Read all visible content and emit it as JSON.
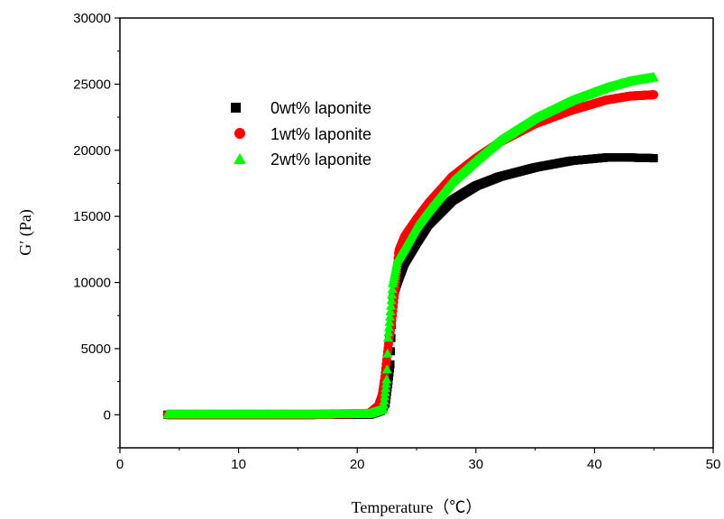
{
  "chart_data": {
    "type": "scatter",
    "title": "",
    "xlabel": "Temperature（℃）",
    "ylabel": "G′ (Pa)",
    "xlim": [
      0,
      50
    ],
    "ylim": [
      -2500,
      30000
    ],
    "x_ticks": [
      0,
      10,
      20,
      30,
      40,
      50
    ],
    "y_ticks": [
      0,
      5000,
      10000,
      15000,
      20000,
      25000,
      30000
    ],
    "x_tick_labels": [
      "0",
      "10",
      "20",
      "30",
      "40",
      "50"
    ],
    "y_tick_labels": [
      "0",
      "5000",
      "10000",
      "15000",
      "20000",
      "25000",
      "30000"
    ],
    "grid": false,
    "legend_position": "upper-left inside",
    "series": [
      {
        "name": "0wt% laponite",
        "marker": "square",
        "color": "#000000",
        "points": [
          [
            4,
            0
          ],
          [
            10,
            0
          ],
          [
            16,
            0
          ],
          [
            21,
            0
          ],
          [
            22.0,
            300
          ],
          [
            22.4,
            900
          ],
          [
            22.6,
            2300
          ],
          [
            22.8,
            3800
          ],
          [
            23.0,
            8800
          ],
          [
            23.3,
            9800
          ],
          [
            24,
            11500
          ],
          [
            25,
            13000
          ],
          [
            26,
            14400
          ],
          [
            28,
            16200
          ],
          [
            30,
            17300
          ],
          [
            32,
            18000
          ],
          [
            35,
            18700
          ],
          [
            38,
            19200
          ],
          [
            41,
            19450
          ],
          [
            43,
            19450
          ],
          [
            45,
            19400
          ]
        ]
      },
      {
        "name": "1wt% laponite",
        "marker": "circle",
        "color": "#ff0000",
        "points": [
          [
            4,
            0
          ],
          [
            10,
            0
          ],
          [
            16,
            0
          ],
          [
            21,
            100
          ],
          [
            21.8,
            700
          ],
          [
            22.1,
            1500
          ],
          [
            22.3,
            2700
          ],
          [
            22.5,
            4300
          ],
          [
            22.7,
            5800
          ],
          [
            22.9,
            7000
          ],
          [
            23.1,
            8700
          ],
          [
            23.5,
            12400
          ],
          [
            24,
            13500
          ],
          [
            25,
            14800
          ],
          [
            26,
            16000
          ],
          [
            28,
            18000
          ],
          [
            30,
            19400
          ],
          [
            32,
            20600
          ],
          [
            35,
            22000
          ],
          [
            38,
            23000
          ],
          [
            41,
            23800
          ],
          [
            43,
            24100
          ],
          [
            45,
            24200
          ]
        ]
      },
      {
        "name": "2wt% laponite",
        "marker": "triangle",
        "color": "#00ff00",
        "points": [
          [
            4,
            0
          ],
          [
            10,
            0
          ],
          [
            16,
            0
          ],
          [
            21,
            50
          ],
          [
            22.2,
            400
          ],
          [
            22.5,
            2800
          ],
          [
            22.6,
            5800
          ],
          [
            22.8,
            7800
          ],
          [
            23.0,
            9900
          ],
          [
            23.4,
            11700
          ],
          [
            24,
            12600
          ],
          [
            25,
            14200
          ],
          [
            26,
            15400
          ],
          [
            28,
            17600
          ],
          [
            30,
            19200
          ],
          [
            32,
            20700
          ],
          [
            35,
            22400
          ],
          [
            38,
            23700
          ],
          [
            41,
            24700
          ],
          [
            43,
            25200
          ],
          [
            45,
            25500
          ]
        ]
      }
    ]
  }
}
